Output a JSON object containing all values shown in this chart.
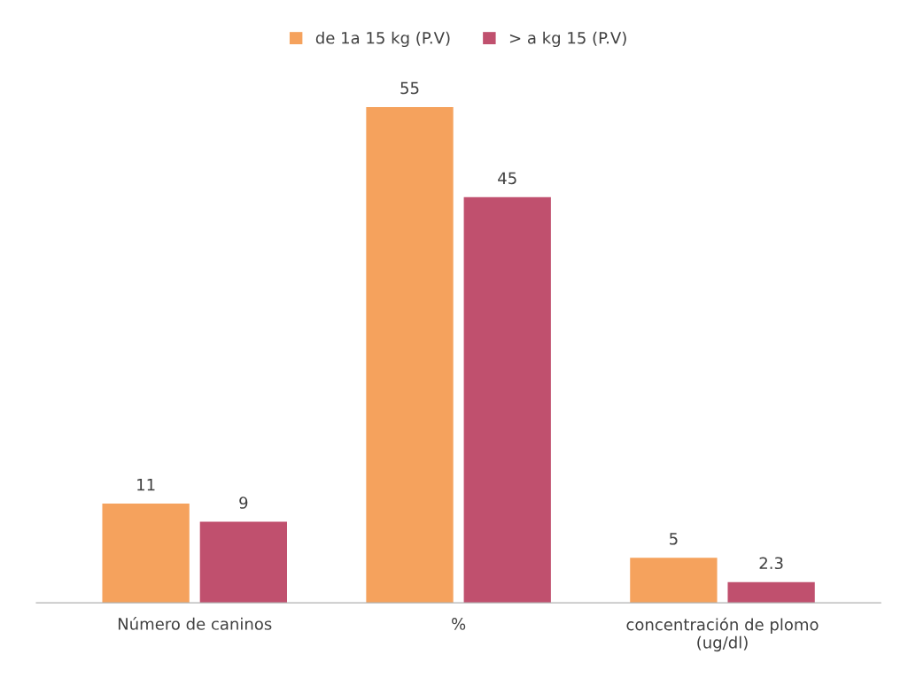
{
  "chart_data": {
    "type": "bar",
    "categories": [
      "Número de caninos",
      "%",
      "concentración de plomo\n(ug/dl)"
    ],
    "series": [
      {
        "name": "de 1a 15 kg (P.V)",
        "color": "#f5a25d",
        "values": [
          11,
          55,
          5
        ]
      },
      {
        "name": "> a kg 15 (P.V)",
        "color": "#c0506e",
        "values": [
          9,
          45,
          2.3
        ]
      }
    ],
    "data_labels": true,
    "legend": "top",
    "grid": false
  }
}
